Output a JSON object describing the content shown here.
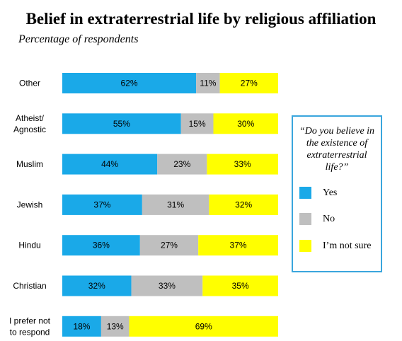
{
  "chart_data": {
    "type": "bar",
    "orientation": "horizontal",
    "stacked": true,
    "title": "Belief in extraterrestrial life by religious affiliation",
    "subtitle": "Percentage of respondents",
    "categories": [
      [
        "Other"
      ],
      [
        "Atheist/",
        "Agnostic"
      ],
      [
        "Muslim"
      ],
      [
        "Jewish"
      ],
      [
        "Hindu"
      ],
      [
        "Christian"
      ],
      [
        "I prefer not",
        "to respond"
      ]
    ],
    "series": [
      {
        "name": "Yes",
        "color": "#1aa9e8",
        "values": [
          62,
          55,
          44,
          37,
          36,
          32,
          18
        ],
        "labels": [
          "62%",
          "55%",
          "44%",
          "37%",
          "36%",
          "32%",
          "18%"
        ]
      },
      {
        "name": "No",
        "color": "#bfbfbf",
        "values": [
          11,
          15,
          23,
          31,
          27,
          33,
          13
        ],
        "labels": [
          "11%",
          "15%",
          "23%",
          "31%",
          "27%",
          "33%",
          "13%"
        ]
      },
      {
        "name": "I’m not sure",
        "color": "#ffff00",
        "values": [
          27,
          30,
          33,
          32,
          37,
          35,
          69
        ],
        "labels": [
          "27%",
          "30%",
          "33%",
          "32%",
          "37%",
          "35%",
          "69%"
        ]
      }
    ],
    "xlim": [
      0,
      100
    ],
    "grid": false,
    "legend": {
      "title": "“Do you believe in the existence of extraterrestrial life?”",
      "placement": "right",
      "border_color": "#3aa6dd"
    }
  }
}
